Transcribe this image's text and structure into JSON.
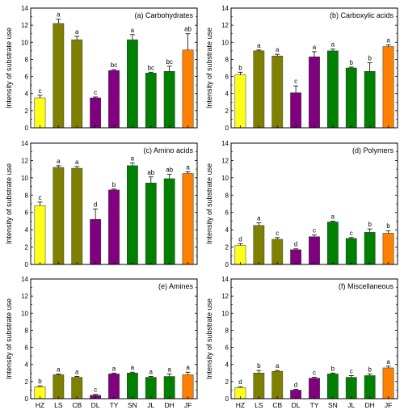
{
  "colors": {
    "HZ": "#ffff1a",
    "LS": "#808000",
    "CB": "#808000",
    "DL": "#800080",
    "TY": "#800080",
    "SN": "#008000",
    "JL": "#008000",
    "DH": "#008000",
    "JF": "#ff8000"
  },
  "chart_data": [
    {
      "type": "bar",
      "title": "(a) Carbohydrates",
      "ylabel": "Intensity of substrate use",
      "ylim": [
        0,
        14
      ],
      "yticks": [
        0,
        2,
        4,
        6,
        8,
        10,
        12,
        14
      ],
      "categories": [
        "HZ",
        "LS",
        "CB",
        "DL",
        "TY",
        "SN",
        "JL",
        "DH",
        "JF"
      ],
      "values": [
        3.5,
        12.2,
        10.3,
        3.5,
        6.7,
        10.3,
        6.4,
        6.6,
        9.1
      ],
      "errors": [
        0.3,
        0.5,
        0.4,
        0.1,
        0.1,
        0.6,
        0.1,
        0.6,
        1.9
      ],
      "labels": [
        "c",
        "a",
        "a",
        "c",
        "bc",
        "a",
        "bc",
        "bc",
        "ab"
      ],
      "show_xlabels": false
    },
    {
      "type": "bar",
      "title": "(b) Carboxylic acids",
      "ylabel": "Intensity of substrate use",
      "ylim": [
        0,
        14
      ],
      "yticks": [
        0,
        2,
        4,
        6,
        8,
        10,
        12,
        14
      ],
      "categories": [
        "HZ",
        "LS",
        "CB",
        "DL",
        "TY",
        "SN",
        "JL",
        "DH",
        "JF"
      ],
      "values": [
        6.2,
        9.0,
        8.4,
        4.1,
        8.3,
        9.0,
        7.0,
        6.6,
        9.5
      ],
      "errors": [
        0.3,
        0.1,
        0.2,
        0.8,
        0.6,
        0.2,
        0.1,
        1.0,
        0.2
      ],
      "labels": [
        "b",
        "a",
        "a",
        "c",
        "a",
        "a",
        "b",
        "b",
        "a"
      ],
      "show_xlabels": false
    },
    {
      "type": "bar",
      "title": "(c) Amino acids",
      "ylabel": "Intensity of substrate use",
      "ylim": [
        0,
        14
      ],
      "yticks": [
        0,
        2,
        4,
        6,
        8,
        10,
        12,
        14
      ],
      "categories": [
        "HZ",
        "LS",
        "CB",
        "DL",
        "TY",
        "SN",
        "JL",
        "DH",
        "JF"
      ],
      "values": [
        6.8,
        11.2,
        11.1,
        5.2,
        8.6,
        11.4,
        9.4,
        9.9,
        10.5
      ],
      "errors": [
        0.4,
        0.2,
        0.2,
        1.2,
        0.1,
        0.3,
        0.7,
        0.5,
        0.2
      ],
      "labels": [
        "c",
        "a",
        "a",
        "d",
        "b",
        "a",
        "ab",
        "ab",
        "a"
      ],
      "show_xlabels": false
    },
    {
      "type": "bar",
      "title": "(d) Polymers",
      "ylabel": "Intensity of substrate use",
      "ylim": [
        0,
        14
      ],
      "yticks": [
        0,
        2,
        4,
        6,
        8,
        10,
        12,
        14
      ],
      "categories": [
        "HZ",
        "LS",
        "CB",
        "DL",
        "TY",
        "SN",
        "JL",
        "DH",
        "JF"
      ],
      "values": [
        2.2,
        4.5,
        2.9,
        1.7,
        3.2,
        4.9,
        3.0,
        3.7,
        3.6
      ],
      "errors": [
        0.2,
        0.3,
        0.2,
        0.1,
        0.2,
        0.1,
        0.1,
        0.4,
        0.3
      ],
      "labels": [
        "d",
        "a",
        "c",
        "d",
        "c",
        "a",
        "c",
        "b",
        "b"
      ],
      "show_xlabels": false
    },
    {
      "type": "bar",
      "title": "(e) Amines",
      "ylabel": "Intensity of substrate use",
      "ylim": [
        0,
        14
      ],
      "yticks": [
        0,
        2,
        4,
        6,
        8,
        10,
        12,
        14
      ],
      "categories": [
        "HZ",
        "LS",
        "CB",
        "DL",
        "TY",
        "SN",
        "JL",
        "DH",
        "JF"
      ],
      "values": [
        1.4,
        2.8,
        2.5,
        0.4,
        2.9,
        3.0,
        2.5,
        2.6,
        2.8
      ],
      "errors": [
        0.1,
        0.1,
        0.1,
        0.1,
        0.1,
        0.1,
        0.1,
        0.3,
        0.3
      ],
      "labels": [
        "b",
        "a",
        "a",
        "c",
        "a",
        "a",
        "a",
        "a",
        "a"
      ],
      "show_xlabels": true
    },
    {
      "type": "bar",
      "title": "(f) Miscellaneous",
      "ylabel": "Intensity of substrate use",
      "ylim": [
        0,
        14
      ],
      "yticks": [
        0,
        2,
        4,
        6,
        8,
        10,
        12,
        14
      ],
      "categories": [
        "HZ",
        "LS",
        "CB",
        "DL",
        "TY",
        "SN",
        "JL",
        "DH",
        "JF"
      ],
      "values": [
        1.3,
        3.0,
        3.2,
        1.0,
        2.4,
        2.9,
        2.5,
        2.7,
        3.6
      ],
      "errors": [
        0.1,
        0.3,
        0.1,
        0.1,
        0.1,
        0.1,
        0.2,
        0.2,
        0.2
      ],
      "labels": [
        "d",
        "b",
        "a",
        "d",
        "c",
        "b",
        "c",
        "b",
        "a"
      ],
      "show_xlabels": true
    }
  ]
}
